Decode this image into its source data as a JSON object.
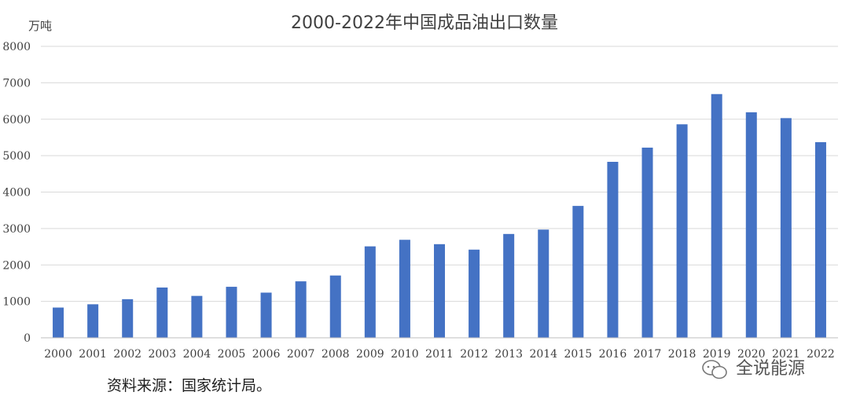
{
  "chart_data": {
    "type": "bar",
    "title": "2000-2022年中国成品油出口数量",
    "unit_label": "万吨",
    "categories": [
      "2000",
      "2001",
      "2002",
      "2003",
      "2004",
      "2005",
      "2006",
      "2007",
      "2008",
      "2009",
      "2010",
      "2011",
      "2012",
      "2013",
      "2014",
      "2015",
      "2016",
      "2017",
      "2018",
      "2019",
      "2020",
      "2021",
      "2022"
    ],
    "values": [
      830,
      920,
      1060,
      1380,
      1150,
      1400,
      1240,
      1550,
      1710,
      2510,
      2690,
      2570,
      2420,
      2850,
      2970,
      3620,
      4830,
      5220,
      5860,
      6690,
      6190,
      6030,
      5370
    ],
    "y_ticks": [
      "0",
      "1000",
      "2000",
      "3000",
      "4000",
      "5000",
      "6000",
      "7000",
      "8000"
    ],
    "ylim": [
      0,
      8000
    ],
    "bar_color": "#4472C4",
    "grid": true
  },
  "source_note": "资料来源：国家统计局。",
  "watermark": {
    "text": "全说能源",
    "icon": "wechat-icon"
  }
}
